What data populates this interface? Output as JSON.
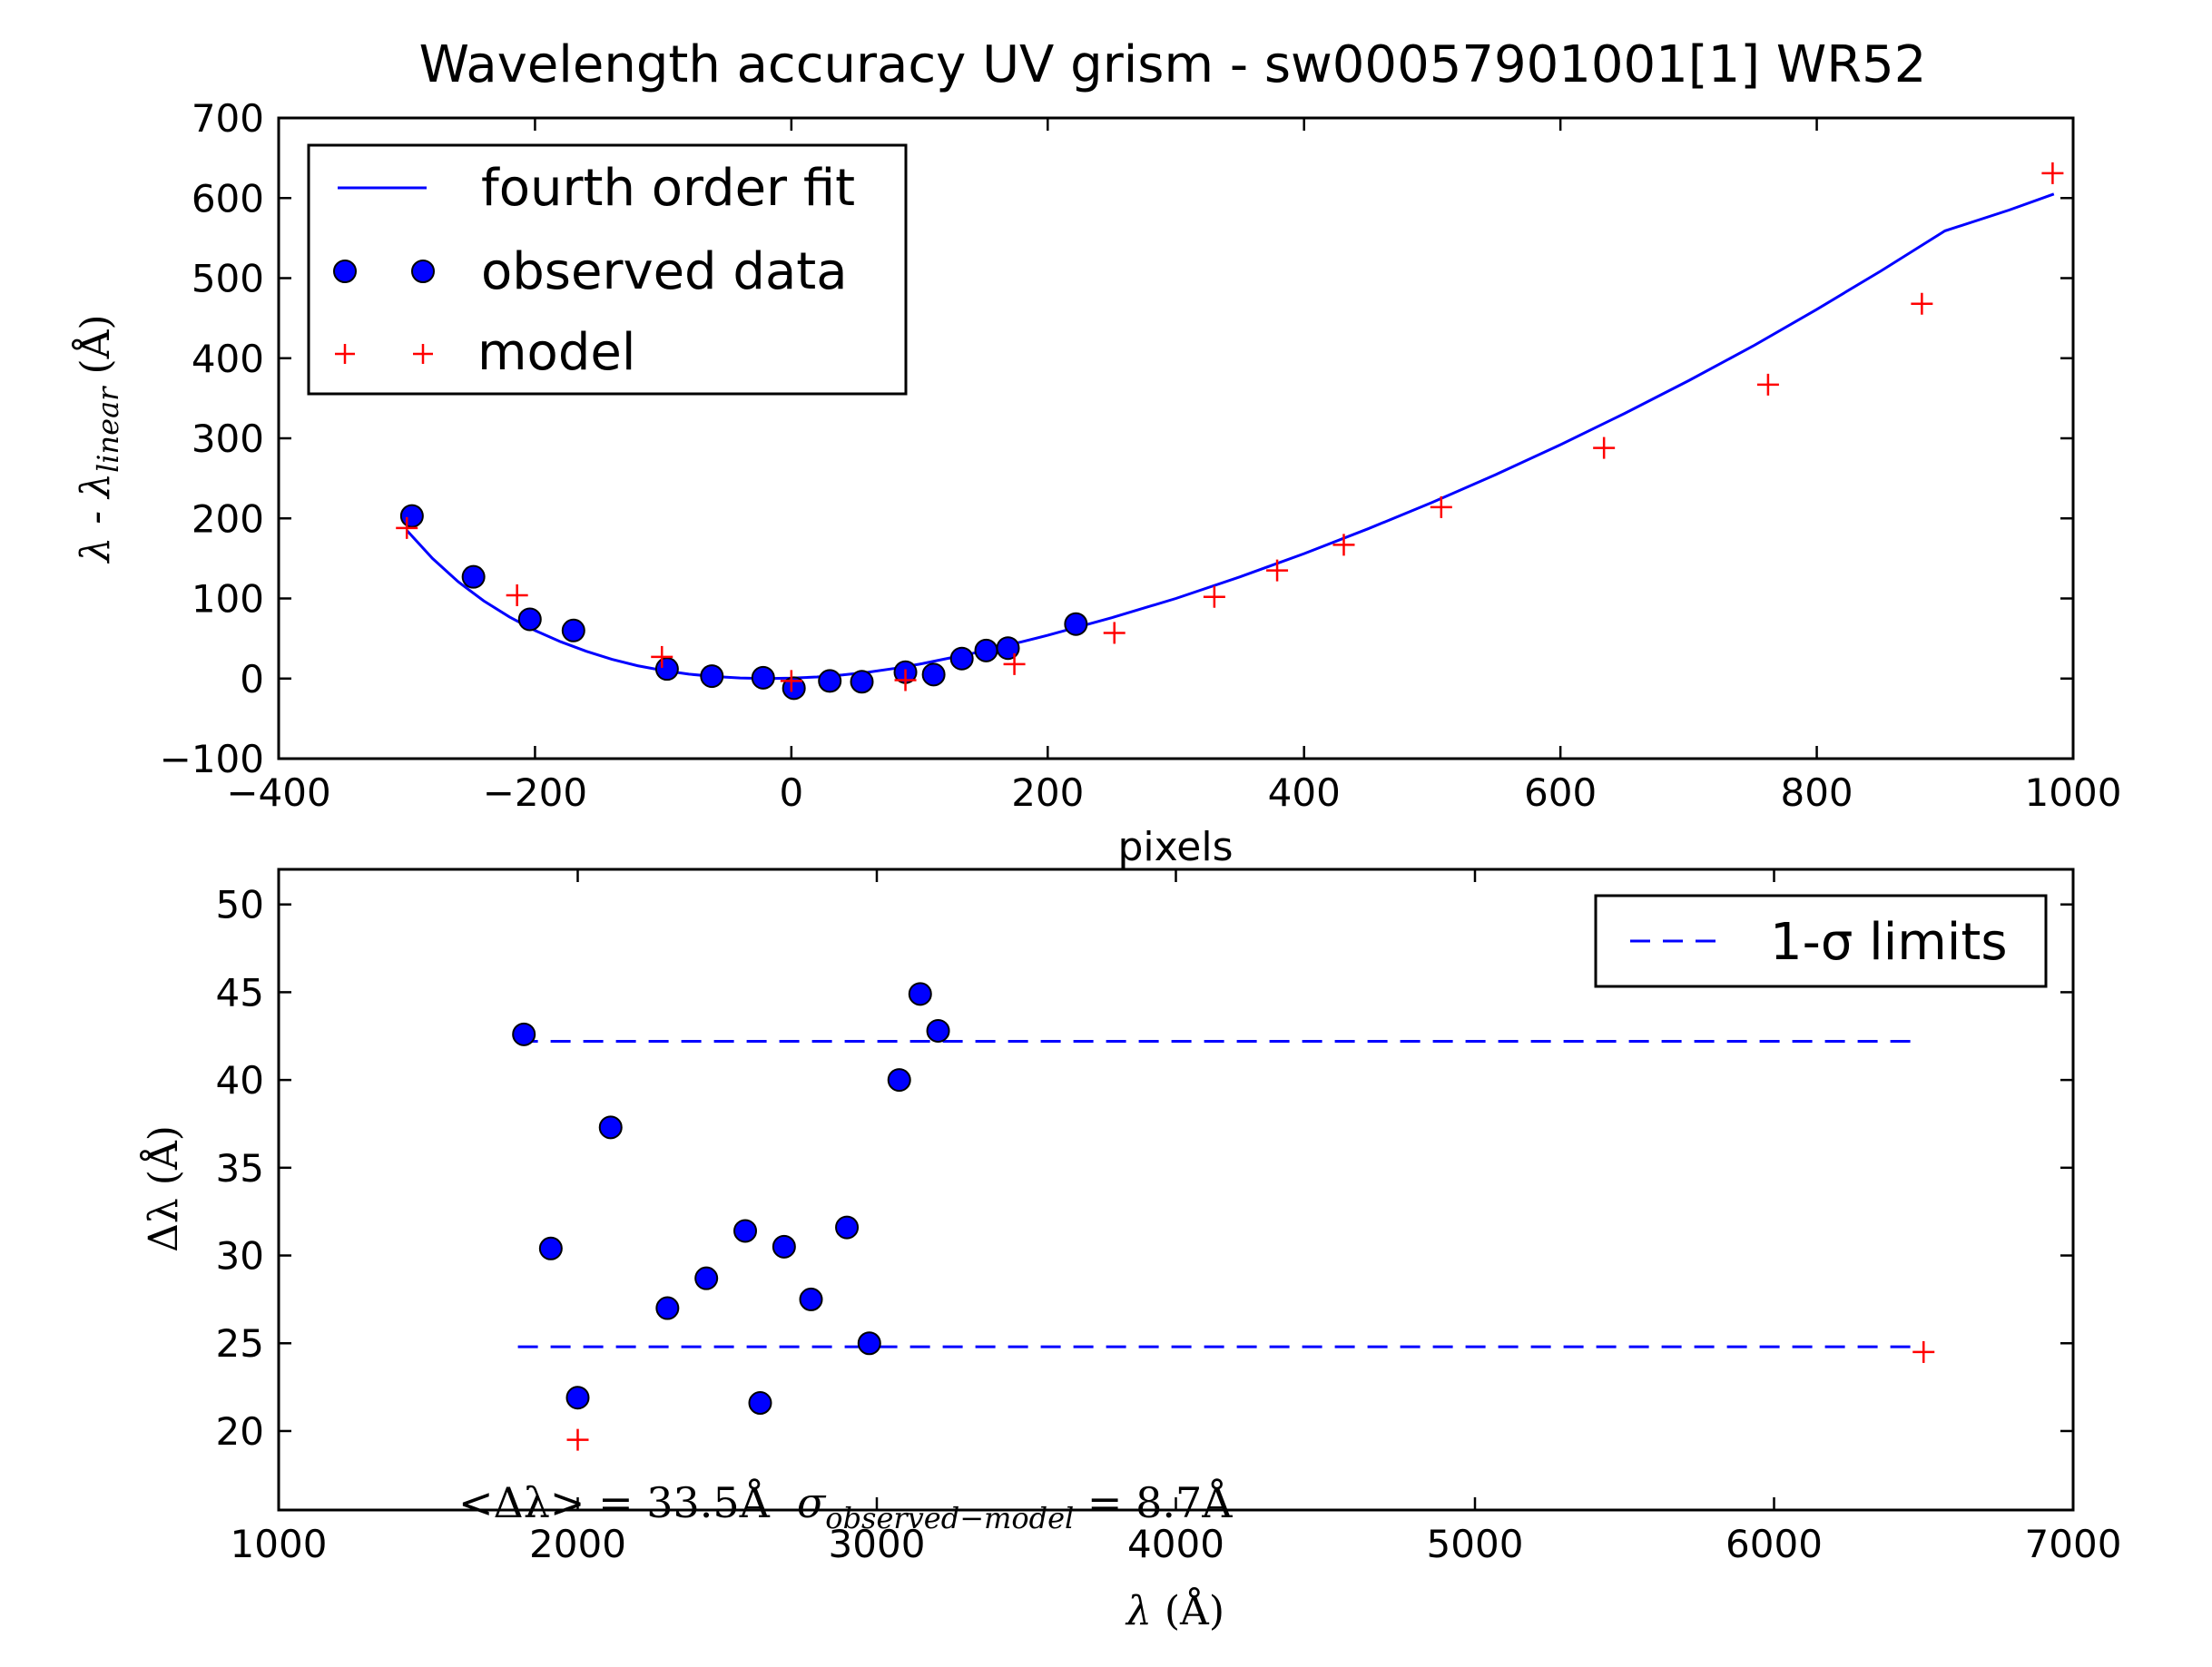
{
  "chart_data": [
    {
      "type": "scatter",
      "title": "Wavelength accuracy UV grism - sw00057901001[1] WR52",
      "xlabel": "pixels",
      "ylabel": {
        "prefix": "λ - λ",
        "sub": "linear",
        "unit": "(Å)"
      },
      "xlim": [
        -400,
        1000
      ],
      "ylim": [
        -100,
        700
      ],
      "xticks": [
        -400,
        -200,
        0,
        200,
        400,
        600,
        800,
        1000
      ],
      "xtick_labels": [
        "−400",
        "−200",
        "0",
        "200",
        "400",
        "600",
        "800",
        "1000"
      ],
      "yticks": [
        -100,
        0,
        100,
        200,
        300,
        400,
        500,
        600,
        700
      ],
      "ytick_labels": [
        "−100",
        "0",
        "100",
        "200",
        "300",
        "400",
        "500",
        "600",
        "700"
      ],
      "legend_position": "upper-left",
      "series": [
        {
          "name": "fourth order fit",
          "kind": "line",
          "color": "#0000ff",
          "x": [
            -300,
            -280,
            -260,
            -240,
            -220,
            -200,
            -180,
            -160,
            -140,
            -120,
            -100,
            -80,
            -60,
            -40,
            -20,
            0,
            20,
            40,
            60,
            80,
            100,
            120,
            140,
            160,
            180,
            200,
            250,
            300,
            350,
            400,
            450,
            500,
            550,
            600,
            650,
            700,
            750,
            800,
            850,
            900,
            950,
            985
          ],
          "y": [
            185,
            150,
            121,
            97,
            77,
            60,
            46,
            34,
            24,
            16,
            10,
            5.5,
            2.5,
            0.7,
            0,
            0.5,
            2,
            4.5,
            8,
            12.5,
            18,
            24.5,
            31,
            38.5,
            46,
            54,
            76,
            100,
            127,
            156,
            187,
            220,
            255,
            292,
            331,
            372,
            415,
            461,
            509,
            559,
            585,
            605
          ]
        },
        {
          "name": "observed data",
          "kind": "marker",
          "marker": "circle",
          "color": "#0000ff",
          "x": [
            -296,
            -248,
            -204,
            -170,
            -97,
            -62,
            -22,
            2,
            30,
            55,
            89,
            111,
            133,
            152,
            169,
            222
          ],
          "y": [
            203,
            127,
            74,
            60,
            12,
            3,
            1,
            -12,
            -3,
            -4,
            8,
            5,
            25,
            35,
            38,
            68
          ]
        },
        {
          "name": "model",
          "kind": "marker",
          "marker": "plus",
          "color": "#ff0000",
          "x": [
            -300,
            -214,
            -101,
            0,
            89,
            174,
            252,
            330,
            379,
            431,
            507,
            634,
            762,
            882,
            984
          ],
          "y": [
            188,
            104,
            27,
            -3,
            -2,
            18,
            57,
            102,
            135,
            167,
            214,
            288,
            367,
            468,
            631
          ]
        }
      ]
    },
    {
      "type": "scatter",
      "xlabel": {
        "prefix": "λ",
        "unit": " (Å)"
      },
      "ylabel": {
        "prefix": "Δλ",
        "unit": " (Å)"
      },
      "xlim": [
        1000,
        7000
      ],
      "ylim": [
        15.5,
        52
      ],
      "xticks": [
        1000,
        2000,
        3000,
        4000,
        5000,
        6000,
        7000
      ],
      "xtick_labels": [
        "1000",
        "2000",
        "3000",
        "4000",
        "5000",
        "6000",
        "7000"
      ],
      "yticks": [
        20,
        25,
        30,
        35,
        40,
        45,
        50
      ],
      "ytick_labels": [
        "20",
        "25",
        "30",
        "35",
        "40",
        "45",
        "50"
      ],
      "legend_position": "upper-right",
      "annotation": {
        "mean": "<Δλ> = 33.5Å",
        "sigma_symbol": "σ",
        "sigma_sub": "observed−model",
        "sigma_value": " = 8.7Å"
      },
      "series": [
        {
          "name": "1-σ limits",
          "kind": "dashed-lines",
          "color": "#0000ff",
          "x_range": [
            1800,
            6490
          ],
          "levels": [
            42.2,
            24.8
          ]
        },
        {
          "kind": "marker",
          "marker": "circle",
          "color": "#0000ff",
          "x": [
            1820,
            1910,
            2000,
            2110,
            2300,
            2430,
            2560,
            2690,
            2780,
            2900,
            2975,
            3075,
            3145,
            3205,
            2610
          ],
          "y": [
            42.6,
            30.4,
            21.9,
            37.3,
            27.0,
            28.7,
            31.4,
            30.5,
            27.5,
            31.6,
            25.0,
            40.0,
            44.9,
            42.8,
            21.6
          ]
        },
        {
          "kind": "marker",
          "marker": "plus",
          "color": "#ff0000",
          "x": [
            2000,
            6500
          ],
          "y": [
            19.5,
            24.5
          ]
        }
      ]
    }
  ]
}
